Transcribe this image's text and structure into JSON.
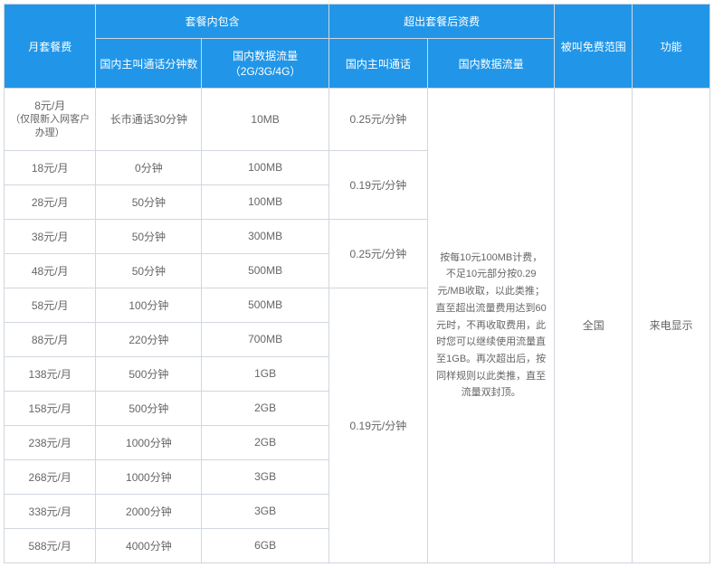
{
  "headers": {
    "plan": "月套餐费",
    "included_group": "套餐内包含",
    "overage_group": "超出套餐后资费",
    "minutes": "国内主叫通话分钟数",
    "data": "国内数据流量（2G/3G/4G）",
    "over_call": "国内主叫通话",
    "over_data": "国内数据流量",
    "free_scope": "被叫免费范围",
    "feature": "功能"
  },
  "rows": [
    {
      "plan": "8元/月",
      "plan_sub": "（仅限新入网客户办理）",
      "minutes": "长市通话30分钟",
      "data": "10MB"
    },
    {
      "plan": "18元/月",
      "minutes": "0分钟",
      "data": "100MB"
    },
    {
      "plan": "28元/月",
      "minutes": "50分钟",
      "data": "100MB"
    },
    {
      "plan": "38元/月",
      "minutes": "50分钟",
      "data": "300MB"
    },
    {
      "plan": "48元/月",
      "minutes": "50分钟",
      "data": "500MB"
    },
    {
      "plan": "58元/月",
      "minutes": "100分钟",
      "data": "500MB"
    },
    {
      "plan": "88元/月",
      "minutes": "220分钟",
      "data": "700MB"
    },
    {
      "plan": "138元/月",
      "minutes": "500分钟",
      "data": "1GB"
    },
    {
      "plan": "158元/月",
      "minutes": "500分钟",
      "data": "2GB"
    },
    {
      "plan": "238元/月",
      "minutes": "1000分钟",
      "data": "2GB"
    },
    {
      "plan": "268元/月",
      "minutes": "1000分钟",
      "data": "3GB"
    },
    {
      "plan": "338元/月",
      "minutes": "2000分钟",
      "data": "3GB"
    },
    {
      "plan": "588元/月",
      "minutes": "4000分钟",
      "data": "6GB"
    }
  ],
  "overage_call_rates": [
    {
      "rate": "0.25元/分钟",
      "span": 1
    },
    {
      "rate": "0.19元/分钟",
      "span": 2
    },
    {
      "rate": "0.25元/分钟",
      "span": 2
    },
    {
      "rate": "0.19元/分钟",
      "span": 8
    }
  ],
  "overage_data_desc": "按每10元100MB计费，不足10元部分按0.29元/MB收取，以此类推；直至超出流量费用达到60元时，不再收取费用，此时您可以继续使用流量直至1GB。再次超出后，按同样规则以此类推，直至流量双封顶。",
  "free_scope_value": "全国",
  "feature_value": "来电显示",
  "colors": {
    "header_bg": "#2196e8",
    "header_text": "#ffffff",
    "border": "#d0d7de",
    "cell_text": "#666666",
    "body_bg": "#ffffff"
  }
}
